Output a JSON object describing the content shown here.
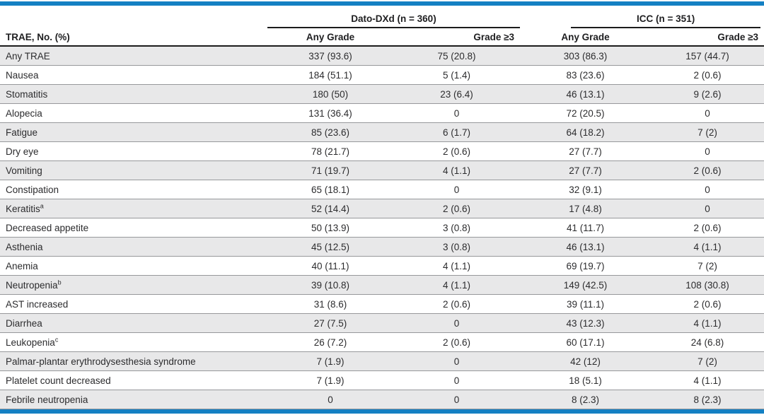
{
  "colors": {
    "accent_bar": "#1480c3",
    "row_shade": "#e8e8e9",
    "rule_dark": "#1c1c1c",
    "rule_light": "#97989b"
  },
  "table": {
    "row_header_label": "TRAE, No. (%)",
    "groups": [
      {
        "label": "Dato-DXd (n = 360)",
        "columns": [
          "Any Grade",
          "Grade ≥3"
        ]
      },
      {
        "label": "ICC (n = 351)",
        "columns": [
          "Any Grade",
          "Grade ≥3"
        ]
      }
    ],
    "rows": [
      {
        "label": "Any TRAE",
        "sup": "",
        "values": [
          "337 (93.6)",
          "75 (20.8)",
          "303 (86.3)",
          "157 (44.7)"
        ]
      },
      {
        "label": "Nausea",
        "sup": "",
        "values": [
          "184 (51.1)",
          "5 (1.4)",
          "83 (23.6)",
          "2 (0.6)"
        ]
      },
      {
        "label": "Stomatitis",
        "sup": "",
        "values": [
          "180 (50)",
          "23 (6.4)",
          "46 (13.1)",
          "9 (2.6)"
        ]
      },
      {
        "label": "Alopecia",
        "sup": "",
        "values": [
          "131 (36.4)",
          "0",
          "72 (20.5)",
          "0"
        ]
      },
      {
        "label": "Fatigue",
        "sup": "",
        "values": [
          "85 (23.6)",
          "6 (1.7)",
          "64 (18.2)",
          "7 (2)"
        ]
      },
      {
        "label": "Dry eye",
        "sup": "",
        "values": [
          "78 (21.7)",
          "2 (0.6)",
          "27 (7.7)",
          "0"
        ]
      },
      {
        "label": "Vomiting",
        "sup": "",
        "values": [
          "71 (19.7)",
          "4 (1.1)",
          "27 (7.7)",
          "2 (0.6)"
        ]
      },
      {
        "label": "Constipation",
        "sup": "",
        "values": [
          "65 (18.1)",
          "0",
          "32 (9.1)",
          "0"
        ]
      },
      {
        "label": "Keratitis",
        "sup": "a",
        "values": [
          "52 (14.4)",
          "2 (0.6)",
          "17 (4.8)",
          "0"
        ]
      },
      {
        "label": "Decreased appetite",
        "sup": "",
        "values": [
          "50 (13.9)",
          "3 (0.8)",
          "41 (11.7)",
          "2 (0.6)"
        ]
      },
      {
        "label": "Asthenia",
        "sup": "",
        "values": [
          "45 (12.5)",
          "3 (0.8)",
          "46 (13.1)",
          "4 (1.1)"
        ]
      },
      {
        "label": "Anemia",
        "sup": "",
        "values": [
          "40 (11.1)",
          "4 (1.1)",
          "69 (19.7)",
          "7 (2)"
        ]
      },
      {
        "label": "Neutropenia",
        "sup": "b",
        "values": [
          "39 (10.8)",
          "4 (1.1)",
          "149 (42.5)",
          "108 (30.8)"
        ]
      },
      {
        "label": "AST increased",
        "sup": "",
        "values": [
          "31 (8.6)",
          "2 (0.6)",
          "39 (11.1)",
          "2 (0.6)"
        ]
      },
      {
        "label": "Diarrhea",
        "sup": "",
        "values": [
          "27 (7.5)",
          "0",
          "43 (12.3)",
          "4 (1.1)"
        ]
      },
      {
        "label": "Leukopenia",
        "sup": "c",
        "values": [
          "26 (7.2)",
          "2 (0.6)",
          "60 (17.1)",
          "24 (6.8)"
        ]
      },
      {
        "label": "Palmar-plantar erythrodysesthesia syndrome",
        "sup": "",
        "values": [
          "7 (1.9)",
          "0",
          "42 (12)",
          "7 (2)"
        ]
      },
      {
        "label": "Platelet count decreased",
        "sup": "",
        "values": [
          "7 (1.9)",
          "0",
          "18 (5.1)",
          "4 (1.1)"
        ]
      },
      {
        "label": "Febrile neutropenia",
        "sup": "",
        "values": [
          "0",
          "0",
          "8 (2.3)",
          "8 (2.3)"
        ]
      }
    ]
  }
}
